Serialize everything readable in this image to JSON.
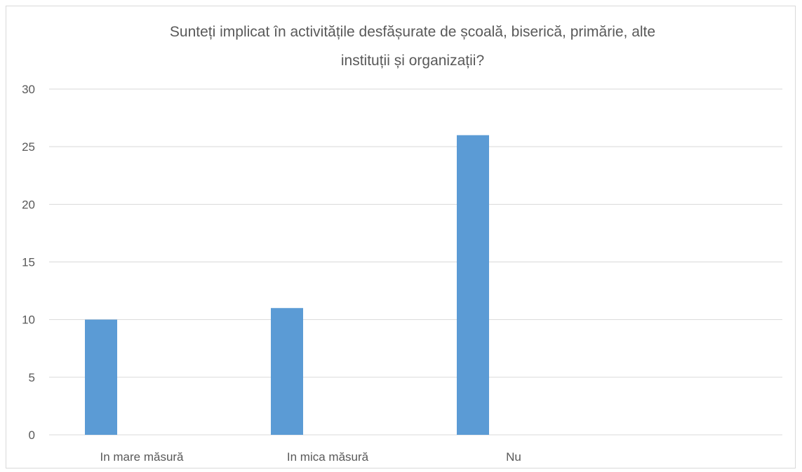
{
  "chart_data": {
    "type": "bar",
    "title_lines": [
      "Sunteți implicat în activitățile desfășurate de școală, biserică, primărie, alte",
      "instituții și organizații?"
    ],
    "categories": [
      "In mare măsură",
      "In mica măsură",
      "Nu"
    ],
    "series": [
      {
        "values": [
          10,
          11,
          26
        ]
      }
    ],
    "ylim": [
      0,
      30
    ],
    "yticks": [
      0,
      5,
      10,
      15,
      20,
      25,
      30
    ],
    "grid": true,
    "legend": "none",
    "colors": {
      "bar": "#5b9bd5",
      "grid": "#d9d9d9",
      "text": "#595959"
    }
  }
}
